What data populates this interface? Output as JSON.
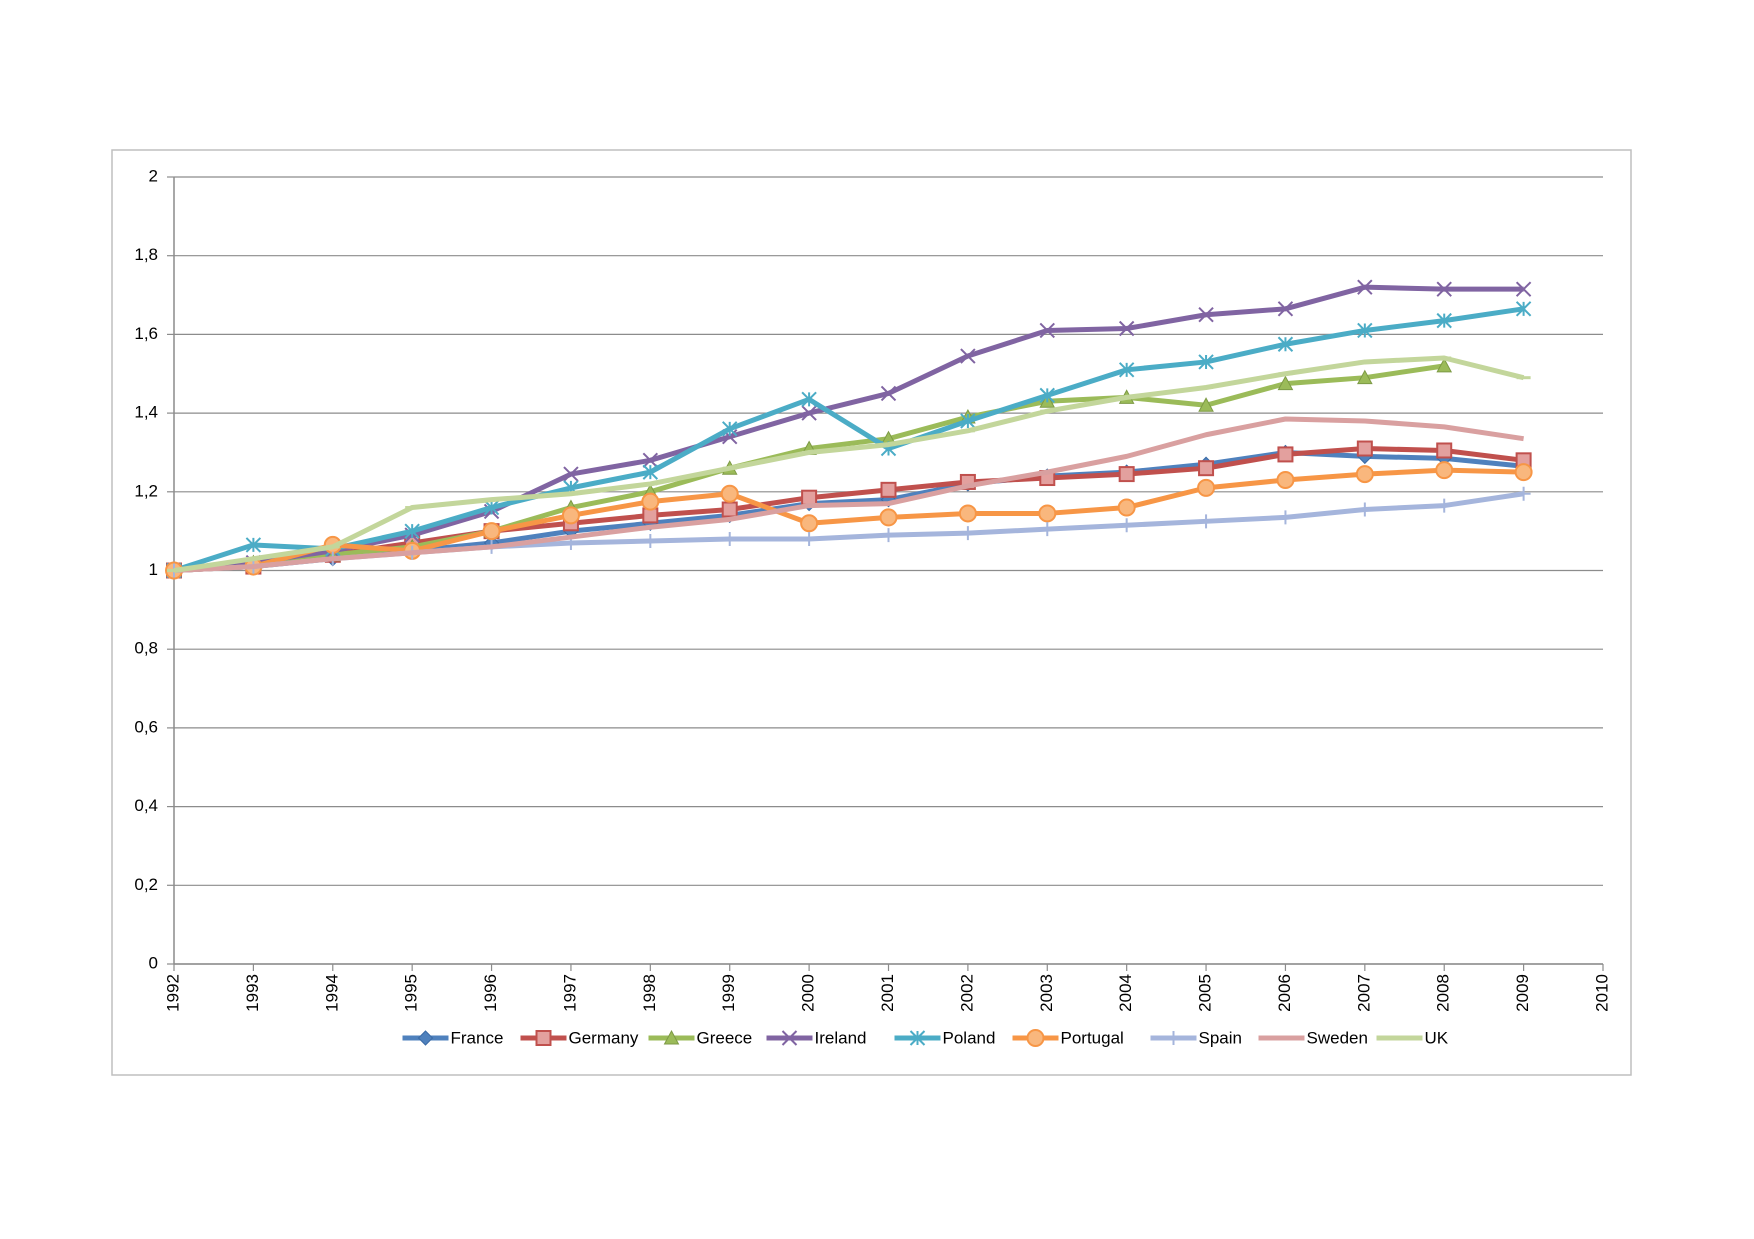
{
  "chart_data": {
    "type": "line",
    "x": [
      1992,
      1993,
      1994,
      1995,
      1996,
      1997,
      1998,
      1999,
      2000,
      2001,
      2002,
      2003,
      2004,
      2005,
      2006,
      2007,
      2008,
      2009
    ],
    "xlim": [
      1992,
      2010
    ],
    "xticks": [
      1992,
      1993,
      1994,
      1995,
      1996,
      1997,
      1998,
      1999,
      2000,
      2001,
      2002,
      2003,
      2004,
      2005,
      2006,
      2007,
      2008,
      2009,
      2010
    ],
    "ylim": [
      0,
      2
    ],
    "yticks": [
      0,
      {
        "value": 0.2,
        "label": "0,2"
      },
      {
        "value": 0.4,
        "label": "0,4"
      },
      {
        "value": 0.6,
        "label": "0,6"
      },
      {
        "value": 0.8,
        "label": "0,8"
      },
      1,
      {
        "value": 1.2,
        "label": "1,2"
      },
      {
        "value": 1.4,
        "label": "1,4"
      },
      {
        "value": 1.6,
        "label": "1,6"
      },
      {
        "value": 1.8,
        "label": "1,8"
      },
      2
    ],
    "grid": true,
    "legend": "bottom",
    "series": [
      {
        "name": "France",
        "color": "#4f81bd",
        "marker": "diamond",
        "values": [
          1.0,
          1.01,
          1.03,
          1.05,
          1.07,
          1.1,
          1.12,
          1.14,
          1.17,
          1.18,
          1.22,
          1.24,
          1.25,
          1.27,
          1.3,
          1.29,
          1.285,
          1.265
        ]
      },
      {
        "name": "Germany",
        "color": "#c0504d",
        "marker": "square",
        "values": [
          1.0,
          1.01,
          1.04,
          1.07,
          1.1,
          1.12,
          1.14,
          1.155,
          1.185,
          1.205,
          1.225,
          1.235,
          1.245,
          1.26,
          1.295,
          1.31,
          1.305,
          1.28
        ]
      },
      {
        "name": "Greece",
        "color": "#9bbb59",
        "marker": "triangle",
        "values": [
          1.0,
          1.02,
          1.04,
          1.06,
          1.1,
          1.16,
          1.2,
          1.26,
          1.31,
          1.335,
          1.39,
          1.43,
          1.44,
          1.42,
          1.475,
          1.49,
          1.52,
          null
        ]
      },
      {
        "name": "Ireland",
        "color": "#8064a2",
        "marker": "x",
        "values": [
          1.0,
          1.02,
          1.05,
          1.09,
          1.15,
          1.245,
          1.28,
          1.34,
          1.4,
          1.45,
          1.545,
          1.61,
          1.615,
          1.65,
          1.665,
          1.72,
          1.715,
          1.715
        ]
      },
      {
        "name": "Poland",
        "color": "#4bacc6",
        "marker": "star",
        "values": [
          1.0,
          1.065,
          1.055,
          1.1,
          1.16,
          1.21,
          1.25,
          1.36,
          1.435,
          1.31,
          1.38,
          1.445,
          1.51,
          1.53,
          1.575,
          1.61,
          1.635,
          1.665
        ]
      },
      {
        "name": "Portugal",
        "color": "#f79646",
        "marker": "circle",
        "values": [
          1.0,
          1.01,
          1.065,
          1.05,
          1.1,
          1.14,
          1.175,
          1.195,
          1.12,
          1.135,
          1.145,
          1.145,
          1.16,
          1.21,
          1.23,
          1.245,
          1.255,
          1.25
        ]
      },
      {
        "name": "Spain",
        "color": "#a5b5dc",
        "marker": "plus",
        "values": [
          1.0,
          1.01,
          1.03,
          1.045,
          1.06,
          1.07,
          1.075,
          1.08,
          1.08,
          1.09,
          1.095,
          1.105,
          1.115,
          1.125,
          1.135,
          1.155,
          1.165,
          1.195
        ]
      },
      {
        "name": "Sweden",
        "color": "#d9a0a0",
        "marker": "none",
        "values": [
          1.0,
          1.01,
          1.03,
          1.045,
          1.06,
          1.085,
          1.11,
          1.13,
          1.165,
          1.17,
          1.215,
          1.25,
          1.29,
          1.345,
          1.385,
          1.38,
          1.365,
          1.335
        ]
      },
      {
        "name": "UK",
        "color": "#c3d69b",
        "marker": "dash",
        "values": [
          1.0,
          1.03,
          1.06,
          1.16,
          1.18,
          1.195,
          1.22,
          1.26,
          1.3,
          1.32,
          1.355,
          1.405,
          1.44,
          1.465,
          1.5,
          1.53,
          1.54,
          1.49
        ]
      }
    ]
  }
}
